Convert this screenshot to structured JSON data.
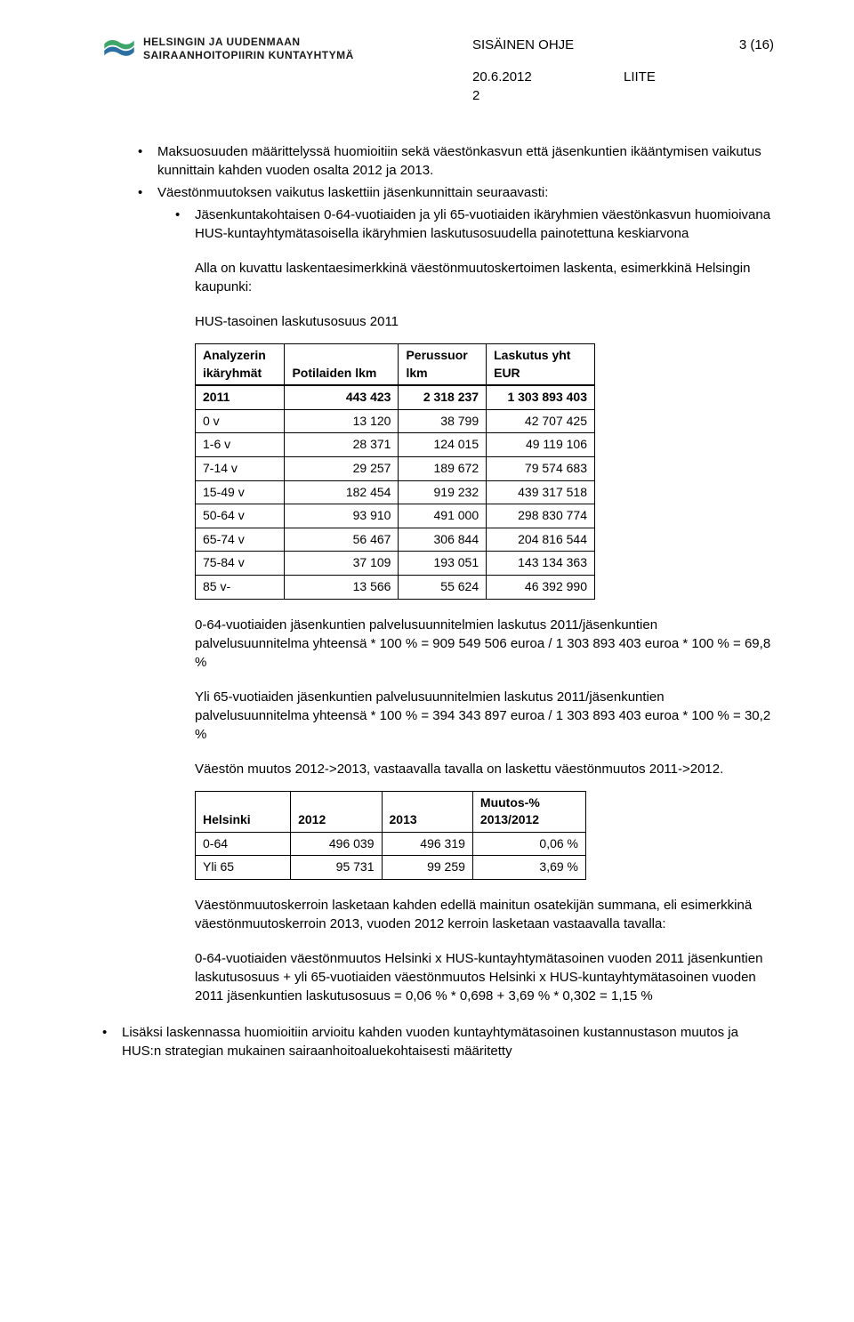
{
  "header": {
    "org_line1": "HELSINGIN JA UUDENMAAN",
    "org_line2": "SAIRAANHOITOPIIRIN KUNTAYHTYMÄ",
    "doc_type": "SISÄINEN OHJE",
    "page_num": "3 (16)",
    "doc_date": "20.6.2012",
    "appendix_label": "LIITE",
    "appendix_num": "2"
  },
  "body": {
    "b1": "Maksuosuuden määrittelyssä huomioitiin sekä väestönkasvun että jäsenkuntien ikääntymisen vaikutus kunnittain kahden vuoden osalta 2012 ja 2013.",
    "b2": "Väestönmuutoksen vaikutus laskettiin jäsenkunnittain seuraavasti:",
    "b2a": "Jäsenkuntakohtaisen 0-64-vuotiaiden ja yli 65-vuotiaiden ikäryhmien väestönkasvun huomioivana HUS-kuntayhtymätasoisella ikäryhmien laskutusosuudella painotettuna keskiarvona",
    "p_alla": "Alla on kuvattu laskentaesimerkkinä väestönmuutoskertoimen laskenta, esimerkkinä Helsingin kaupunki:",
    "p_hus": "HUS-tasoinen laskutusosuus 2011",
    "p_064": "0-64-vuotiaiden jäsenkuntien palvelusuunnitelmien laskutus 2011/jäsenkuntien palvelusuunnitelma yhteensä * 100 % = 909 549 506 euroa / 1 303 893 403 euroa * 100 % = 69,8 %",
    "p_yli65": "Yli 65-vuotiaiden jäsenkuntien palvelusuunnitelmien laskutus 2011/jäsenkuntien palvelusuunnitelma yhteensä * 100 % = 394 343 897 euroa / 1 303 893 403 euroa * 100 % = 30,2 %",
    "p_vaesto": "Väestön muutos 2012->2013, vastaavalla tavalla on laskettu väestönmuutos 2011->2012.",
    "p_kerroin": "Väestönmuutoskerroin lasketaan kahden edellä mainitun osatekijän summana, eli esimerkkinä väestönmuutoskerroin 2013, vuoden 2012 kerroin lasketaan vastaavalla tavalla:",
    "p_calc": "0-64-vuotiaiden väestönmuutos Helsinki x HUS-kuntayhtymätasoinen vuoden 2011 jäsenkuntien laskutusosuus + yli 65-vuotiaiden väestönmuutos Helsinki x HUS-kuntayhtymätasoinen vuoden 2011 jäsenkuntien laskutusosuus = 0,06 % * 0,698 + 3,69 % * 0,302 = 1,15 %",
    "b_last": "Lisäksi laskennassa huomioitiin arvioitu kahden vuoden kuntayhtymätasoinen kustannustason muutos ja HUS:n strategian mukainen sairaanhoitoaluekohtaisesti määritetty"
  },
  "table1": {
    "type": "table",
    "border_color": "#000000",
    "font_size": 14,
    "headers": {
      "c1a": "Analyzerin",
      "c1b": "ikäryhmät",
      "c2": "Potilaiden lkm",
      "c3a": "Perussuor",
      "c3b": "lkm",
      "c4a": "Laskutus yht",
      "c4b": "EUR"
    },
    "rows": [
      [
        "2011",
        "443 423",
        "2 318 237",
        "1 303 893 403"
      ],
      [
        "0 v",
        "13 120",
        "38 799",
        "42 707 425"
      ],
      [
        "1-6 v",
        "28 371",
        "124 015",
        "49 119 106"
      ],
      [
        "7-14 v",
        "29 257",
        "189 672",
        "79 574 683"
      ],
      [
        "15-49 v",
        "182 454",
        "919 232",
        "439 317 518"
      ],
      [
        "50-64 v",
        "93 910",
        "491 000",
        "298 830 774"
      ],
      [
        "65-74 v",
        "56 467",
        "306 844",
        "204 816 544"
      ],
      [
        "75-84 v",
        "37 109",
        "193 051",
        "143 134 363"
      ],
      [
        "85 v-",
        "13 566",
        "55 624",
        "46 392 990"
      ]
    ]
  },
  "table2": {
    "type": "table",
    "border_color": "#000000",
    "font_size": 14,
    "headers": {
      "c1": "Helsinki",
      "c2": "2012",
      "c3": "2013",
      "c4a": "Muutos-%",
      "c4b": "2013/2012"
    },
    "rows": [
      [
        "0-64",
        "496 039",
        "496 319",
        "0,06 %"
      ],
      [
        "Yli 65",
        "95 731",
        "99 259",
        "3,69 %"
      ]
    ]
  },
  "logo_colors": {
    "top": "#3fa66b",
    "bottom": "#2b6fa3"
  }
}
